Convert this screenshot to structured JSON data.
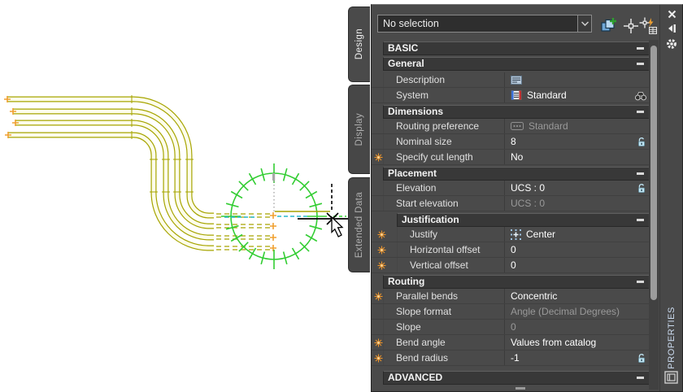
{
  "canvas": {
    "background": "#ffffff",
    "conduit_color": "#a6a400",
    "conduit_fill": "#fdfdea",
    "compass_color": "#33cd33",
    "marker_color": "#f0a030",
    "entities": "four parallel conduit runs with concentric bends, routing compass, crosshair cursor"
  },
  "palette": {
    "title": "PROPERTIES",
    "selection_dropdown": {
      "value": "No selection"
    },
    "toolbar": {
      "pickadd": "toggle-pickadd",
      "select_objects": "select-objects",
      "quick_select": "quick-select"
    },
    "tabs": [
      {
        "label": "Design",
        "active": true
      },
      {
        "label": "Display",
        "active": false
      },
      {
        "label": "Extended Data",
        "active": false
      }
    ],
    "rows": [
      {
        "type": "section",
        "label": "BASIC"
      },
      {
        "type": "section",
        "label": "General"
      },
      {
        "type": "prop",
        "label": "Description",
        "value": ""
      },
      {
        "type": "prop",
        "label": "System",
        "value": "Standard"
      },
      {
        "type": "section",
        "label": "Dimensions"
      },
      {
        "type": "prop",
        "label": "Routing preference",
        "value": "Standard",
        "state": "disabled"
      },
      {
        "type": "prop",
        "label": "Nominal size",
        "value": "8"
      },
      {
        "type": "prop",
        "label": "Specify cut length",
        "value": "No",
        "override": true
      },
      {
        "type": "section",
        "label": "Placement"
      },
      {
        "type": "prop",
        "label": "Elevation",
        "value": "UCS : 0"
      },
      {
        "type": "prop",
        "label": "Start elevation",
        "value": "UCS : 0",
        "state": "disabled"
      },
      {
        "type": "subsection",
        "label": "Justification"
      },
      {
        "type": "prop",
        "label": "Justify",
        "value": "Center",
        "override": true
      },
      {
        "type": "prop",
        "label": "Horizontal offset",
        "value": "0",
        "override": true
      },
      {
        "type": "prop",
        "label": "Vertical offset",
        "value": "0",
        "override": true
      },
      {
        "type": "section",
        "label": "Routing"
      },
      {
        "type": "prop",
        "label": "Parallel bends",
        "value": "Concentric",
        "override": true
      },
      {
        "type": "prop",
        "label": "Slope format",
        "value": "Angle (Decimal Degrees)",
        "state": "disabled"
      },
      {
        "type": "prop",
        "label": "Slope",
        "value": "0",
        "state": "disabled"
      },
      {
        "type": "prop",
        "label": "Bend angle",
        "value": "Values from catalog",
        "override": true
      },
      {
        "type": "prop",
        "label": "Bend radius",
        "value": "-1",
        "override": true
      },
      {
        "type": "section",
        "label": "ADVANCED"
      }
    ]
  }
}
